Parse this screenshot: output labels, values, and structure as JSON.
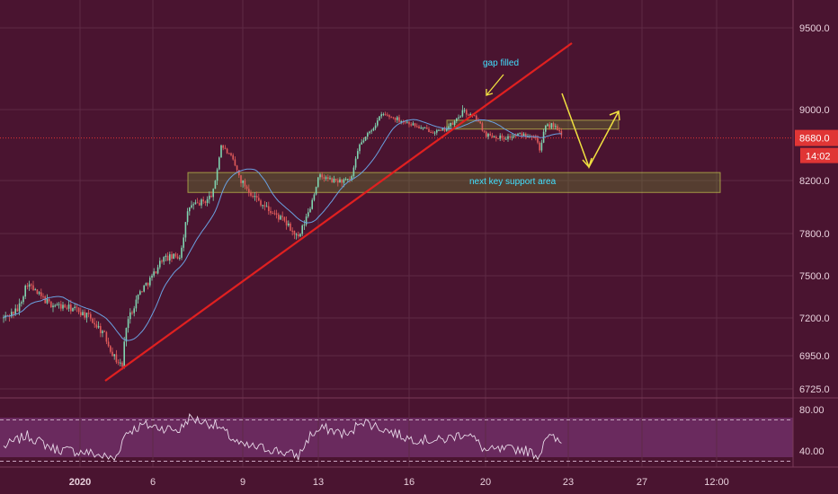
{
  "chart_data": {
    "type": "candlestick",
    "price_axis": {
      "ticks": [
        6725.0,
        6950.0,
        7200.0,
        7500.0,
        7800.0,
        8200.0,
        9000.0,
        9500.0
      ],
      "tick_labels": [
        "6725.0",
        "6950.0",
        "7200.0",
        "7500.0",
        "7800.0",
        "8200.0",
        "9000.0",
        "9500.0"
      ],
      "current_price_label": "8680.0",
      "countdown_label": "14:02",
      "current_price": 8680
    },
    "time_axis": {
      "labels": [
        "2020",
        "6",
        "9",
        "13",
        "16",
        "20",
        "23",
        "27",
        "12:00"
      ]
    },
    "rsi": {
      "tick_labels": [
        "80.00",
        "40.00"
      ],
      "upper": 70,
      "lower": 30
    },
    "annotations": [
      {
        "label": "gap filled",
        "color": "#40e0ff"
      },
      {
        "label": "next key support area",
        "color": "#40e0ff"
      }
    ],
    "zones": [
      {
        "name": "next-key-support-area",
        "from": 8110,
        "to": 8290
      },
      {
        "name": "resistance-zone",
        "from": 8780,
        "to": 8880
      }
    ],
    "colors": {
      "background": "#4a1430",
      "up_candle": "#7fd4b0",
      "down_candle": "#e05a5a",
      "moving_average": "#6aa0e0",
      "trendline": "#e02020",
      "arrow": "#f0e040",
      "annotation_text": "#40e0ff",
      "zone_fill": "#6a8a30",
      "zone_border": "#c8c850",
      "price_tag": "#e03535",
      "rsi_line": "#e8d8e8",
      "rsi_band": "#6a2a5e"
    }
  }
}
